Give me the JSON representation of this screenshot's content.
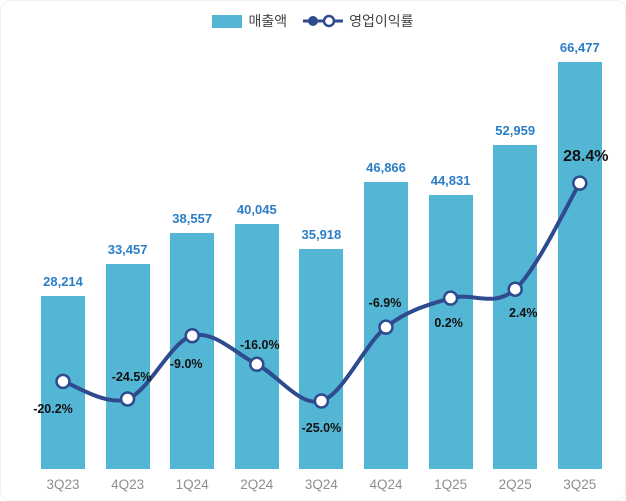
{
  "legend": {
    "revenue_label": "매출액",
    "margin_label": "영업이익률"
  },
  "colors": {
    "bar": "#53B6D4",
    "bar_label": "#2B7EC6",
    "line": "#2E4B8F",
    "marker_fill": "#FFFFFF",
    "axis_label": "#8F8F8F",
    "pct_label": "#111111",
    "background": "#FFFFFF"
  },
  "chart_data": {
    "type": "bar+line",
    "title": "",
    "categories": [
      "3Q23",
      "4Q23",
      "1Q24",
      "2Q24",
      "3Q24",
      "4Q24",
      "1Q25",
      "2Q25",
      "3Q25"
    ],
    "series": [
      {
        "name": "매출액",
        "type": "bar",
        "values": [
          28214,
          33457,
          38557,
          40045,
          35918,
          46866,
          44831,
          52959,
          66477
        ],
        "labels": [
          "28,214",
          "33,457",
          "38,557",
          "40,045",
          "35,918",
          "46,866",
          "44,831",
          "52,959",
          "66,477"
        ]
      },
      {
        "name": "영업이익률",
        "type": "line",
        "values": [
          -20.2,
          -24.5,
          -9.0,
          -16.0,
          -25.0,
          -6.9,
          0.2,
          2.4,
          28.4
        ],
        "labels": [
          "-20.2%",
          "-24.5%",
          "-9.0%",
          "-16.0%",
          "-25.0%",
          "-6.9%",
          "0.2%",
          "2.4%",
          "28.4%"
        ]
      }
    ],
    "value_axis": {
      "hidden": true,
      "range": [
        0,
        68000
      ]
    },
    "percent_axis": {
      "hidden": true,
      "range": [
        -35,
        45
      ]
    },
    "grid": false,
    "legend_position": "top-center"
  }
}
